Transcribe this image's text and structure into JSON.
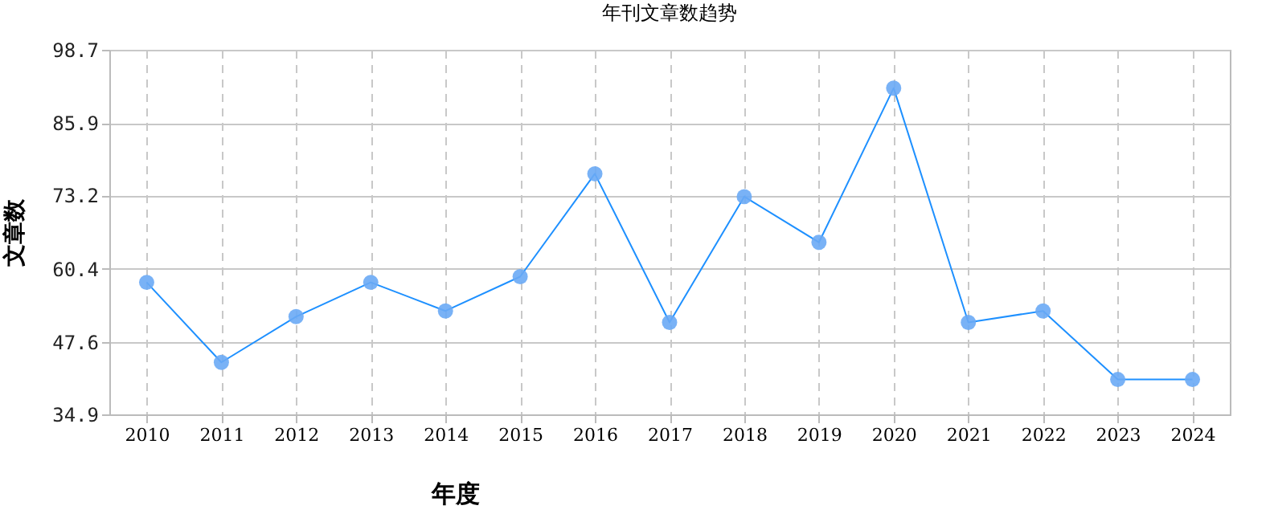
{
  "chart_data": {
    "type": "line",
    "title": "年刊文章数趋势",
    "xlabel": "年度",
    "ylabel": "文章数",
    "categories": [
      "2010",
      "2011",
      "2012",
      "2013",
      "2014",
      "2015",
      "2016",
      "2017",
      "2018",
      "2019",
      "2020",
      "2021",
      "2022",
      "2023",
      "2024"
    ],
    "series": [
      {
        "color": "#1e90ff",
        "values": [
          58,
          44,
          52,
          58,
          53,
          59,
          77,
          51,
          73,
          65,
          92,
          51,
          53,
          41,
          41
        ]
      }
    ],
    "ylim": [
      34.9,
      98.7
    ],
    "yticks": [
      34.9,
      47.6,
      60.4,
      73.2,
      85.9,
      98.7
    ],
    "grid": true,
    "marker": "circle",
    "line_style": "solid"
  }
}
